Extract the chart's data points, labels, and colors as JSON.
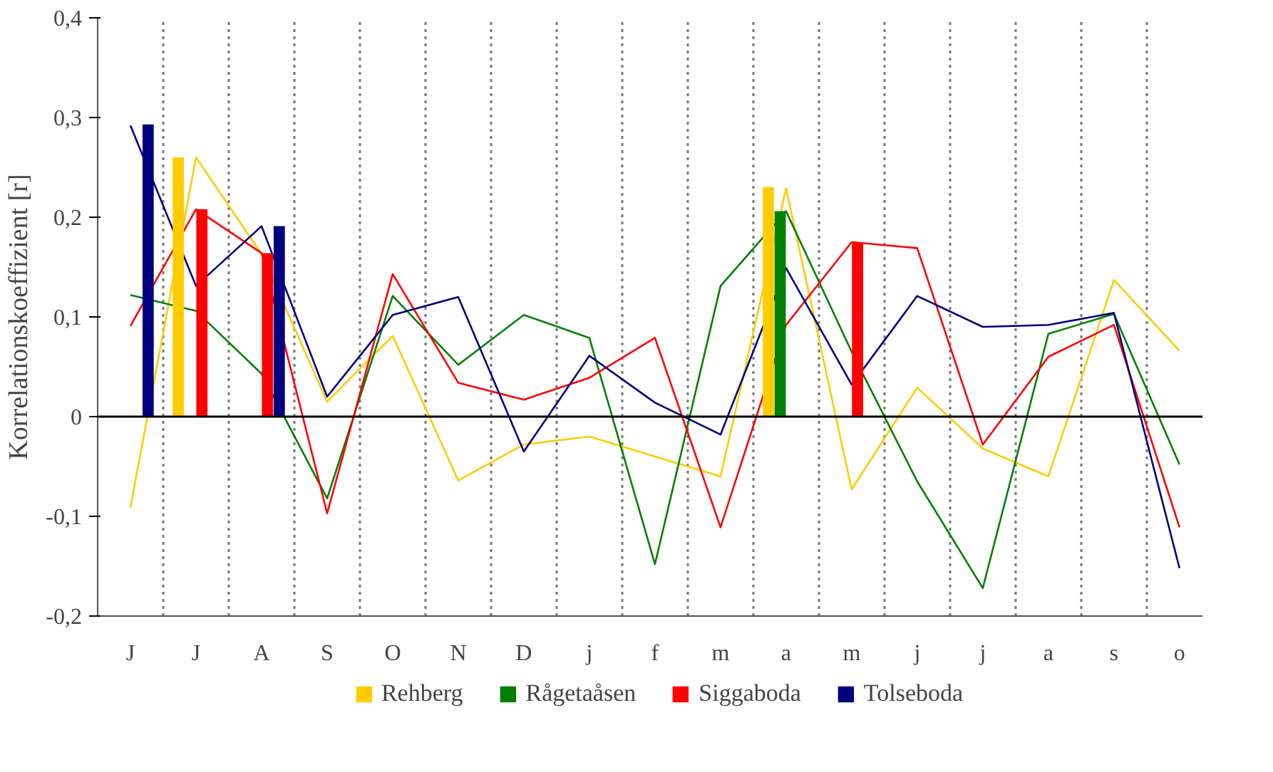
{
  "chart_data": {
    "type": "line",
    "ylabel": "Korrelationskoeffizient [r]",
    "categories": [
      "J",
      "J",
      "A",
      "S",
      "O",
      "N",
      "D",
      "j",
      "f",
      "m",
      "a",
      "m",
      "j",
      "j",
      "a",
      "s",
      "o"
    ],
    "ylim": [
      -0.2,
      0.4
    ],
    "yticks": [
      {
        "value": -0.2,
        "label": "-0,2"
      },
      {
        "value": -0.1,
        "label": "-0,1"
      },
      {
        "value": 0,
        "label": "0"
      },
      {
        "value": 0.1,
        "label": "0,1"
      },
      {
        "value": 0.2,
        "label": "0,2"
      },
      {
        "value": 0.3,
        "label": "0,3"
      },
      {
        "value": 0.4,
        "label": "0,4"
      }
    ],
    "grid": "x",
    "legend": "bottom",
    "marker": "none",
    "line_style": "solid",
    "ref_lines": [
      {
        "axis": "y",
        "value": 0,
        "color": "#000000",
        "line_style": "solid"
      }
    ],
    "series": [
      {
        "color": "#ffcc00",
        "values": [
          -0.091,
          0.26,
          0.163,
          0.015,
          0.081,
          -0.064,
          -0.028,
          -0.02,
          -0.04,
          -0.06,
          0.229,
          -0.073,
          0.029,
          -0.032,
          -0.06,
          0.137,
          0.066
        ]
      },
      {
        "color": "#008000",
        "values": [
          0.122,
          0.106,
          0.043,
          -0.082,
          0.121,
          0.052,
          0.102,
          0.079,
          -0.148,
          0.131,
          0.206,
          0.065,
          -0.065,
          -0.172,
          0.083,
          0.103,
          -0.048
        ]
      },
      {
        "color": "#ff0000",
        "values": [
          0.091,
          0.208,
          0.164,
          -0.097,
          0.143,
          0.034,
          0.017,
          0.039,
          0.079,
          -0.111,
          0.092,
          0.175,
          0.169,
          -0.028,
          0.06,
          0.092,
          -0.111
        ]
      },
      {
        "color": "#000080",
        "values": [
          0.292,
          0.131,
          0.191,
          0.02,
          0.102,
          0.12,
          -0.035,
          0.061,
          0.014,
          -0.018,
          0.149,
          0.032,
          0.121,
          0.09,
          0.092,
          0.104,
          -0.152
        ]
      },
      {
        "type": "bar",
        "name": "Rehberg",
        "color": "#ffcc00",
        "values": [
          null,
          0.26,
          null,
          null,
          null,
          null,
          null,
          null,
          null,
          null,
          0.23,
          null,
          null,
          null,
          null,
          null,
          null
        ]
      },
      {
        "type": "bar",
        "name": "Rågetaåsen",
        "color": "#008000",
        "values": [
          null,
          null,
          null,
          null,
          null,
          null,
          null,
          null,
          null,
          null,
          0.206,
          null,
          null,
          null,
          null,
          null,
          null
        ]
      },
      {
        "type": "bar",
        "name": "Siggaboda",
        "color": "#ff0000",
        "values": [
          null,
          0.208,
          0.164,
          null,
          null,
          null,
          null,
          null,
          null,
          null,
          null,
          0.175,
          null,
          null,
          null,
          null,
          null
        ]
      },
      {
        "type": "bar",
        "name": "Tolseboda",
        "color": "#000080",
        "values": [
          0.293,
          null,
          0.191,
          null,
          null,
          null,
          null,
          null,
          null,
          null,
          null,
          null,
          null,
          null,
          null,
          null,
          null
        ]
      }
    ]
  }
}
